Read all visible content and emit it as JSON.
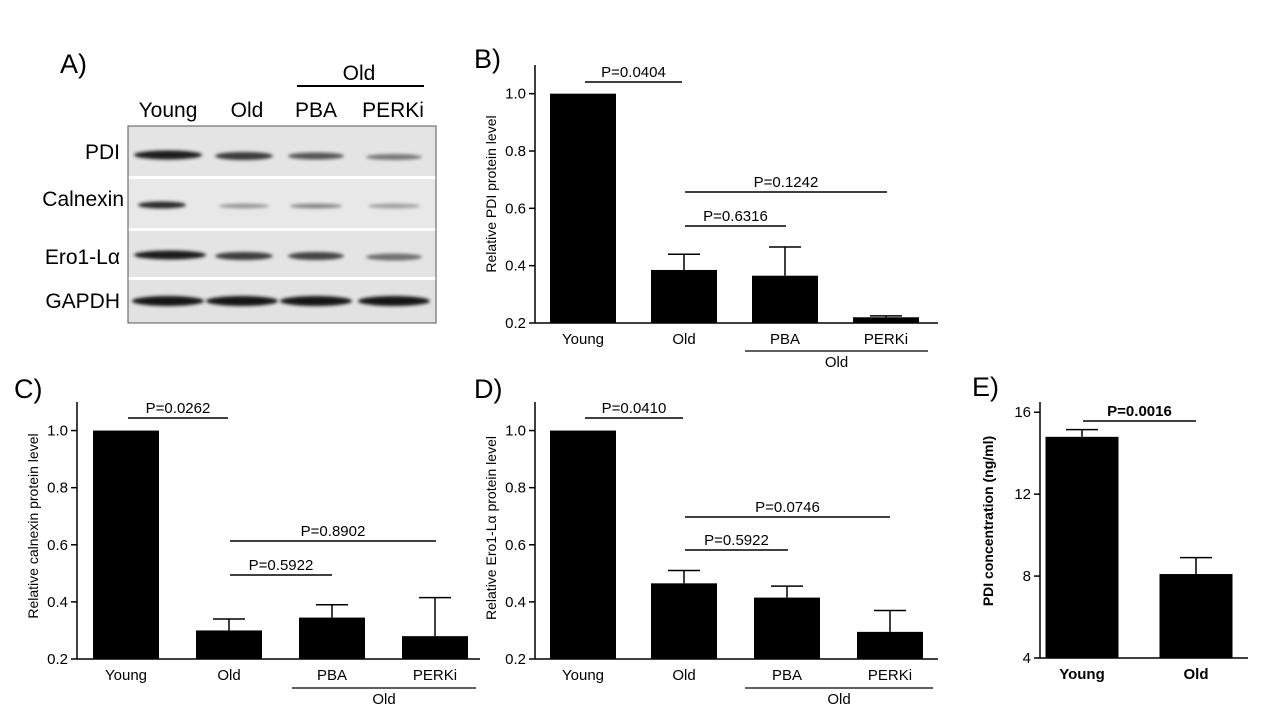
{
  "panel_a": {
    "letter": "A)",
    "group_label": "Old",
    "lanes": [
      "Young",
      "Old",
      "PBA",
      "PERKi"
    ],
    "rows": [
      "PDI",
      "Calnexin",
      "Ero1-Lα",
      "GAPDH"
    ]
  },
  "chart_data": [
    {
      "id": "B",
      "letter": "B)",
      "type": "bar",
      "categories": [
        "Young",
        "Old",
        "PBA",
        "PERKi"
      ],
      "values": [
        1.0,
        0.385,
        0.365,
        0.22
      ],
      "errors": [
        0,
        0.055,
        0.1,
        0.005
      ],
      "ylabel": "Relative PDI protein level",
      "ylim": [
        0.2,
        1.1
      ],
      "yticks": [
        "0.2",
        "0.4",
        "0.6",
        "0.8",
        "1.0"
      ],
      "group_label": "Old",
      "comparisons": [
        {
          "label": "P=0.0404"
        },
        {
          "label": "P=0.1242"
        },
        {
          "label": "P=0.6316"
        }
      ]
    },
    {
      "id": "C",
      "letter": "C)",
      "type": "bar",
      "categories": [
        "Young",
        "Old",
        "PBA",
        "PERKi"
      ],
      "values": [
        1.0,
        0.3,
        0.345,
        0.28
      ],
      "errors": [
        0,
        0.04,
        0.045,
        0.135
      ],
      "ylabel": "Relative calnexin protein level",
      "ylim": [
        0.2,
        1.1
      ],
      "yticks": [
        "0.2",
        "0.4",
        "0.6",
        "0.8",
        "1.0"
      ],
      "group_label": "Old",
      "comparisons": [
        {
          "label": "P=0.0262"
        },
        {
          "label": "P=0.8902"
        },
        {
          "label": "P=0.5922"
        }
      ]
    },
    {
      "id": "D",
      "letter": "D)",
      "type": "bar",
      "categories": [
        "Young",
        "Old",
        "PBA",
        "PERKi"
      ],
      "values": [
        1.0,
        0.465,
        0.415,
        0.295
      ],
      "errors": [
        0,
        0.045,
        0.04,
        0.075
      ],
      "ylabel": "Relative Ero1-Lα protein level",
      "ylim": [
        0.2,
        1.1
      ],
      "yticks": [
        "0.2",
        "0.4",
        "0.6",
        "0.8",
        "1.0"
      ],
      "group_label": "Old",
      "comparisons": [
        {
          "label": "P=0.0410"
        },
        {
          "label": "P=0.0746"
        },
        {
          "label": "P=0.5922"
        }
      ]
    },
    {
      "id": "E",
      "letter": "E)",
      "type": "bar",
      "categories": [
        "Young",
        "Old"
      ],
      "values": [
        14.8,
        8.1
      ],
      "errors": [
        0.35,
        0.8
      ],
      "ylabel": "PDI concentration (ng/ml)",
      "ylim": [
        4,
        16.5
      ],
      "yticks": [
        "4",
        "8",
        "12",
        "16"
      ],
      "group_label": "",
      "comparisons": [
        {
          "label": "P=0.0016"
        }
      ]
    }
  ]
}
